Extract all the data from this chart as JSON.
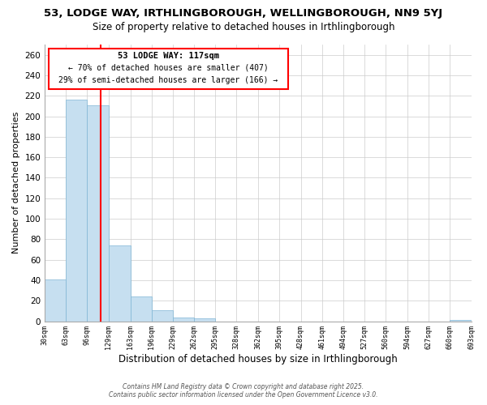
{
  "title": "53, LODGE WAY, IRTHLINGBOROUGH, WELLINGBOROUGH, NN9 5YJ",
  "subtitle": "Size of property relative to detached houses in Irthlingborough",
  "xlabel": "Distribution of detached houses by size in Irthlingborough",
  "ylabel": "Number of detached properties",
  "bar_color": "#c6dff0",
  "bar_edge_color": "#7fb5d5",
  "bin_edges": [
    30,
    63,
    96,
    129,
    163,
    196,
    229,
    262,
    295,
    328,
    362,
    395,
    428,
    461,
    494,
    527,
    560,
    594,
    627,
    660,
    693
  ],
  "bar_heights": [
    41,
    216,
    211,
    74,
    24,
    11,
    4,
    3,
    0,
    0,
    0,
    0,
    0,
    0,
    0,
    0,
    0,
    0,
    0,
    1
  ],
  "ylim": [
    0,
    270
  ],
  "yticks": [
    0,
    20,
    40,
    60,
    80,
    100,
    120,
    140,
    160,
    180,
    200,
    220,
    240,
    260
  ],
  "red_line_x": 117,
  "annotation_title": "53 LODGE WAY: 117sqm",
  "annotation_line1": "← 70% of detached houses are smaller (407)",
  "annotation_line2": "29% of semi-detached houses are larger (166) →",
  "footer_line1": "Contains HM Land Registry data © Crown copyright and database right 2025.",
  "footer_line2": "Contains public sector information licensed under the Open Government Licence v3.0.",
  "background_color": "#ffffff",
  "grid_color": "#cccccc",
  "tick_labels": [
    "30sqm",
    "63sqm",
    "96sqm",
    "129sqm",
    "163sqm",
    "196sqm",
    "229sqm",
    "262sqm",
    "295sqm",
    "328sqm",
    "362sqm",
    "395sqm",
    "428sqm",
    "461sqm",
    "494sqm",
    "527sqm",
    "560sqm",
    "594sqm",
    "627sqm",
    "660sqm",
    "693sqm"
  ]
}
